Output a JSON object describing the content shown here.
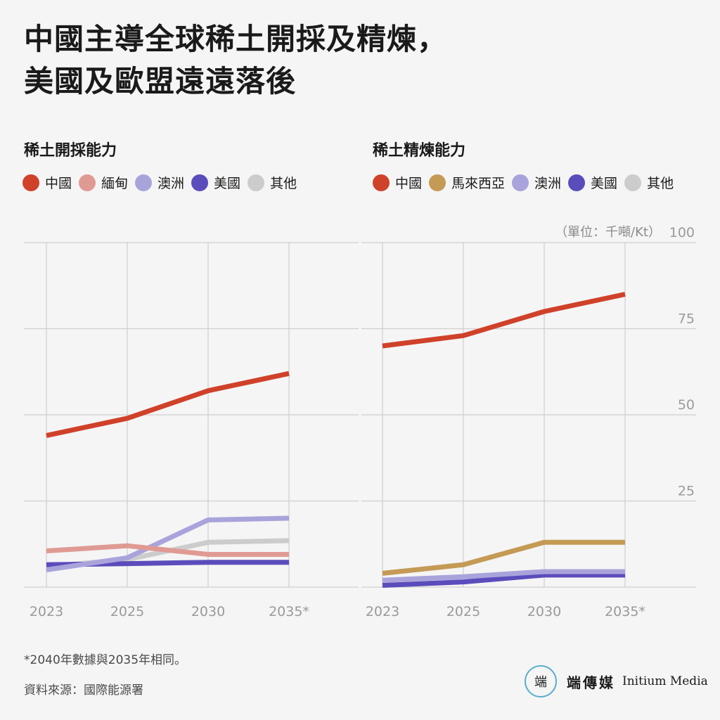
{
  "title": {
    "line1": "中國主導全球稀土開採及精煉，",
    "line2": "美國及歐盟遠遠落後"
  },
  "unit_label": "（單位：千噸/Kt）",
  "footnote": "*2040年數據與2035年相同。",
  "source": "資料來源：國際能源署",
  "logo": {
    "mark": "端",
    "name_cn": "端傳媒",
    "name_en": "Initium Media"
  },
  "chart_data": [
    {
      "type": "line",
      "title": "稀土開採能力",
      "x": [
        "2023",
        "2025",
        "2030",
        "2035*"
      ],
      "ylim": [
        0,
        100
      ],
      "yticks": [
        "25",
        "50",
        "75",
        "100"
      ],
      "grid": true,
      "legend_position": "top",
      "series": [
        {
          "name": "中國",
          "color": "#d0412a",
          "values": [
            44,
            49,
            57,
            62
          ]
        },
        {
          "name": "緬甸",
          "color": "#e09a94",
          "values": [
            10.5,
            12,
            9.5,
            9.5
          ]
        },
        {
          "name": "澳洲",
          "color": "#a9a3dc",
          "values": [
            5,
            8.5,
            19.5,
            20
          ]
        },
        {
          "name": "美國",
          "color": "#5b4cbc",
          "values": [
            6.5,
            6.8,
            7.2,
            7.2
          ]
        },
        {
          "name": "其他",
          "color": "#cccccc",
          "values": [
            6,
            8,
            13,
            13.5
          ]
        }
      ]
    },
    {
      "type": "line",
      "title": "稀土精煉能力",
      "x": [
        "2023",
        "2025",
        "2030",
        "2035*"
      ],
      "ylim": [
        0,
        100
      ],
      "yticks": [
        "25",
        "50",
        "75",
        "100"
      ],
      "grid": true,
      "legend_position": "top",
      "series": [
        {
          "name": "中國",
          "color": "#d0412a",
          "values": [
            70,
            73,
            80,
            85
          ]
        },
        {
          "name": "馬來西亞",
          "color": "#c49a55",
          "values": [
            4,
            6.5,
            13,
            13
          ]
        },
        {
          "name": "澳洲",
          "color": "#a9a3dc",
          "values": [
            2,
            3,
            4.5,
            4.5
          ]
        },
        {
          "name": "美國",
          "color": "#5b4cbc",
          "values": [
            0.5,
            1.5,
            3.5,
            3.5
          ]
        },
        {
          "name": "其他",
          "color": "#cccccc",
          "values": [
            2,
            3,
            4.5,
            4.5
          ]
        }
      ]
    }
  ]
}
